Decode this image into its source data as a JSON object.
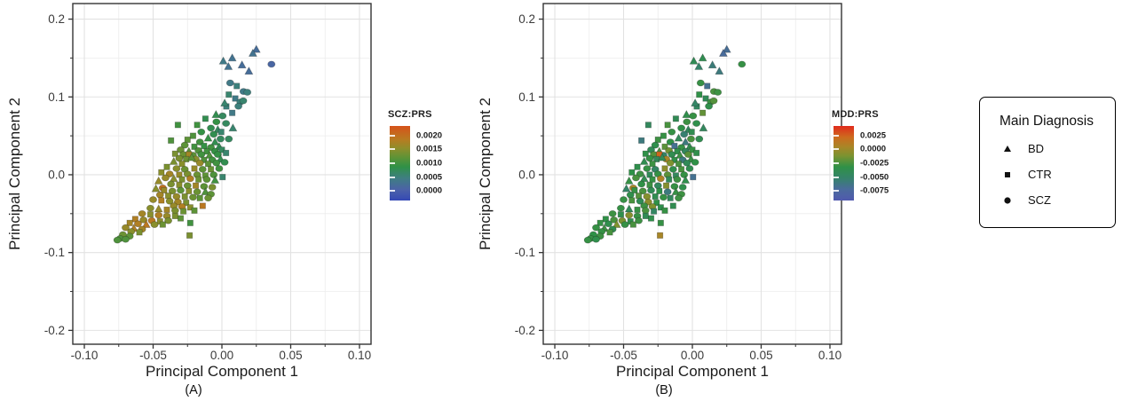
{
  "figure_caption_a": "(A)",
  "figure_caption_b": "(B)",
  "chart_data": [
    {
      "type": "scatter",
      "panel": "A",
      "caption": "(A)",
      "xlabel": "Principal Component 1",
      "ylabel": "Principal Component 2",
      "xlim": [
        -0.1084,
        0.1084
      ],
      "ylim": [
        -0.2178,
        0.22
      ],
      "x_ticks": {
        "values": [
          -0.1,
          -0.05,
          0.0,
          0.05,
          0.1
        ],
        "labels": [
          "-0.10",
          "-0.05",
          "0.00",
          "0.05",
          "0.10"
        ]
      },
      "y_ticks": {
        "values": [
          0.2,
          0.1,
          0.0,
          -0.1,
          -0.2
        ],
        "labels": [
          "0.2",
          "0.1",
          "0.0",
          "-0.1",
          "-0.2"
        ]
      },
      "x_minor": [
        -0.075,
        -0.025,
        0.025,
        0.075
      ],
      "y_minor": [
        0.15,
        0.05,
        -0.05,
        -0.15
      ],
      "grid": true,
      "color_field": "scz_prs",
      "colorbar": {
        "title": "SCZ:PRS",
        "domain": [
          -0.00035,
          0.00235
        ],
        "tick_labels": [
          "0.0020",
          "0.0015",
          "0.0010",
          "0.0005",
          "0.0000"
        ],
        "tick_pos_pct": [
          13,
          31.5,
          50,
          68.5,
          87
        ],
        "stops": [
          [
            0,
            "#3448b4"
          ],
          [
            0.14,
            "#4b61a9"
          ],
          [
            0.3,
            "#3f7e82"
          ],
          [
            0.45,
            "#2f9147"
          ],
          [
            0.58,
            "#5f9336"
          ],
          [
            0.7,
            "#8f8e2b"
          ],
          [
            0.82,
            "#b87b21"
          ],
          [
            1,
            "#d6521a"
          ]
        ]
      }
    },
    {
      "type": "scatter",
      "panel": "B",
      "caption": "(B)",
      "xlabel": "Principal Component 1",
      "ylabel": "Principal Component 2",
      "xlim": [
        -0.1084,
        0.1084
      ],
      "ylim": [
        -0.2178,
        0.22
      ],
      "x_ticks": {
        "values": [
          -0.1,
          -0.05,
          0.0,
          0.05,
          0.1
        ],
        "labels": [
          "-0.10",
          "-0.05",
          "0.00",
          "0.05",
          "0.10"
        ]
      },
      "y_ticks": {
        "values": [
          0.2,
          0.1,
          0.0,
          -0.1,
          -0.2
        ],
        "labels": [
          "0.2",
          "0.1",
          "0.0",
          "-0.1",
          "-0.2"
        ]
      },
      "x_minor": [
        -0.075,
        -0.025,
        0.025,
        0.075
      ],
      "y_minor": [
        0.15,
        0.05,
        -0.05,
        -0.15
      ],
      "grid": true,
      "color_field": "mdd_prs",
      "colorbar": {
        "title": "MDD:PRS",
        "domain": [
          -0.00935,
          0.00435
        ],
        "tick_labels": [
          "0.0025",
          "0.0000",
          "-0.0025",
          "-0.0050",
          "-0.0075"
        ],
        "tick_pos_pct": [
          13,
          31.5,
          50,
          68.5,
          87
        ],
        "stops": [
          [
            0,
            "#5059ae"
          ],
          [
            0.15,
            "#4a6b9d"
          ],
          [
            0.3,
            "#35836a"
          ],
          [
            0.45,
            "#2f9147"
          ],
          [
            0.6,
            "#7c9330"
          ],
          [
            0.72,
            "#a88627"
          ],
          [
            0.85,
            "#cd6b1e"
          ],
          [
            1,
            "#e12a1c"
          ]
        ]
      }
    }
  ],
  "points_columns": [
    "pc1",
    "pc2",
    "shape(t=BD,s=CTR,c=SCZ)",
    "scz_prs",
    "mdd_prs"
  ],
  "points": [
    [
      0.025,
      0.161,
      "t",
      0.0002,
      -0.007
    ],
    [
      0.0225,
      0.156,
      "t",
      0.0003,
      -0.0072
    ],
    [
      0.0075,
      0.15,
      "t",
      0.0003,
      -0.0038
    ],
    [
      0.001,
      0.146,
      "t",
      0.0004,
      -0.004
    ],
    [
      0.0047,
      0.139,
      "t",
      0.0003,
      -0.0052
    ],
    [
      0.0146,
      0.141,
      "t",
      0.0002,
      -0.0058
    ],
    [
      0.0196,
      0.133,
      "t",
      0.0002,
      -0.006
    ],
    [
      0.036,
      0.142,
      "c",
      0.0001,
      -0.003
    ],
    [
      0.006,
      0.118,
      "c",
      0.0004,
      -0.003
    ],
    [
      0.0108,
      0.114,
      "s",
      0.0005,
      -0.0068
    ],
    [
      0.0157,
      0.107,
      "c",
      0.0004,
      -0.0025
    ],
    [
      0.005,
      0.103,
      "s",
      0.0006,
      -0.0032
    ],
    [
      0.0185,
      0.106,
      "c",
      0.0005,
      -0.0028
    ],
    [
      0.0097,
      0.098,
      "s",
      0.0004,
      -0.0042
    ],
    [
      0.0134,
      0.0935,
      "c",
      0.0005,
      -0.0028
    ],
    [
      0.0032,
      0.0878,
      "s",
      0.0005,
      -0.0047
    ],
    [
      0.0155,
      0.095,
      "c",
      0.0006,
      -0.0022
    ],
    [
      0.0075,
      0.0795,
      "s",
      0.0004,
      -0.0018
    ],
    [
      -0.0043,
      0.0772,
      "t",
      0.0008,
      -0.0035
    ],
    [
      0.0005,
      0.0756,
      "c",
      0.0007,
      -0.003
    ],
    [
      0.012,
      0.088,
      "c",
      0.0005,
      -0.0035
    ],
    [
      0.002,
      0.092,
      "t",
      0.0006,
      -0.005
    ],
    [
      -0.012,
      0.072,
      "s",
      0.0008,
      -0.004
    ],
    [
      -0.004,
      0.068,
      "c",
      0.0009,
      -0.0028
    ],
    [
      -0.018,
      0.064,
      "s",
      0.001,
      -0.0025
    ],
    [
      -0.032,
      0.064,
      "s",
      0.001,
      -0.0045
    ],
    [
      -0.008,
      0.06,
      "c",
      0.0008,
      -0.0032
    ],
    [
      -0.003,
      0.058,
      "t",
      0.0007,
      -0.0045
    ],
    [
      -0.015,
      0.055,
      "c",
      0.0009,
      -0.003
    ],
    [
      -0.006,
      0.052,
      "c",
      0.0008,
      -0.0055
    ],
    [
      -0.0005,
      0.055,
      "s",
      0.0006,
      -0.0038
    ],
    [
      -0.021,
      0.05,
      "s",
      0.0011,
      -0.003
    ],
    [
      -0.01,
      0.047,
      "t",
      0.0009,
      -0.0042
    ],
    [
      -0.025,
      0.045,
      "s",
      0.0012,
      -0.0028
    ],
    [
      -0.037,
      0.044,
      "s",
      0.0011,
      -0.006
    ],
    [
      -0.016,
      0.042,
      "c",
      0.001,
      -0.0032
    ],
    [
      -0.005,
      0.042,
      "t",
      0.0008,
      -0.006
    ],
    [
      -0.001,
      0.046,
      "c",
      0.0007,
      -0.0025
    ],
    [
      0.003,
      0.066,
      "c",
      0.0007,
      -0.0035
    ],
    [
      0.008,
      0.06,
      "t",
      0.0006,
      -0.0045
    ],
    [
      0.005,
      0.046,
      "c",
      0.0007,
      -0.0038
    ],
    [
      -0.027,
      0.038,
      "c",
      0.0012,
      -0.0035
    ],
    [
      -0.02,
      0.036,
      "s",
      0.001,
      -0.002
    ],
    [
      -0.013,
      0.037,
      "s",
      0.0009,
      -0.0068
    ],
    [
      -0.008,
      0.035,
      "c",
      0.001,
      -0.003
    ],
    [
      -0.002,
      0.036,
      "t",
      0.0008,
      -0.0038
    ],
    [
      -0.03,
      0.032,
      "c",
      0.0013,
      -0.004
    ],
    [
      -0.024,
      0.03,
      "t",
      0.0012,
      -0.0025
    ],
    [
      -0.017,
      0.031,
      "c",
      0.0011,
      -0.0015
    ],
    [
      -0.011,
      0.03,
      "s",
      0.001,
      -0.0035
    ],
    [
      -0.005,
      0.03,
      "c",
      0.0009,
      -0.0045
    ],
    [
      0.0,
      0.032,
      "s",
      0.0007,
      -0.003
    ],
    [
      -0.034,
      0.027,
      "s",
      0.0014,
      -0.0032
    ],
    [
      -0.028,
      0.026,
      "c",
      0.0013,
      -0.0022
    ],
    [
      -0.021,
      0.025,
      "c",
      0.0012,
      -0.005
    ],
    [
      -0.024,
      0.026,
      "s",
      0.0017,
      0.0025
    ],
    [
      -0.015,
      0.026,
      "c",
      0.001,
      -0.0038
    ],
    [
      -0.009,
      0.025,
      "t",
      0.0011,
      -0.0028
    ],
    [
      -0.003,
      0.026,
      "c",
      0.0009,
      -0.002
    ],
    [
      0.003,
      0.028,
      "s",
      0.0006,
      -0.0035
    ],
    [
      -0.031,
      0.021,
      "c",
      0.0014,
      -0.003
    ],
    [
      -0.026,
      0.02,
      "s",
      0.0013,
      -0.0042
    ],
    [
      -0.019,
      0.02,
      "c",
      0.0015,
      0.0005
    ],
    [
      -0.013,
      0.019,
      "s",
      0.0011,
      -0.0032
    ],
    [
      -0.007,
      0.019,
      "c",
      0.001,
      -0.006
    ],
    [
      -0.001,
      0.02,
      "t",
      0.0008,
      -0.003
    ],
    [
      -0.022,
      0.022,
      "t",
      0.0012,
      -0.004
    ],
    [
      -0.016,
      0.015,
      "c",
      0.0016,
      -0.001
    ],
    [
      -0.01,
      0.014,
      "s",
      0.0012,
      -0.0025
    ],
    [
      -0.004,
      0.015,
      "c",
      0.001,
      -0.0042
    ],
    [
      0.002,
      0.016,
      "c",
      0.0008,
      -0.0032
    ],
    [
      -0.029,
      0.014,
      "s",
      0.0015,
      -0.0028
    ],
    [
      -0.035,
      0.017,
      "t",
      0.0014,
      -0.0038
    ],
    [
      -0.04,
      0.01,
      "s",
      0.0014,
      -0.0035
    ],
    [
      -0.033,
      0.008,
      "c",
      0.0015,
      -0.003
    ],
    [
      -0.027,
      0.007,
      "c",
      0.0013,
      -0.0048
    ],
    [
      -0.02,
      0.008,
      "s",
      0.0016,
      -0.0005
    ],
    [
      -0.014,
      0.007,
      "c",
      0.0012,
      -0.0035
    ],
    [
      -0.008,
      0.007,
      "s",
      0.0013,
      -0.0025
    ],
    [
      -0.002,
      0.008,
      "c",
      0.001,
      -0.0038
    ],
    [
      -0.044,
      0.003,
      "s",
      0.0015,
      -0.0032
    ],
    [
      -0.038,
      0.001,
      "c",
      0.0017,
      -0.0028
    ],
    [
      -0.031,
      0.0,
      "s",
      0.0016,
      -0.0042
    ],
    [
      -0.025,
      0.001,
      "c",
      0.0014,
      -0.003
    ],
    [
      -0.018,
      0.0,
      "c",
      0.0013,
      -0.002
    ],
    [
      -0.012,
      -0.001,
      "s",
      0.0012,
      -0.0045
    ],
    [
      -0.006,
      0.0,
      "c",
      0.0011,
      -0.003
    ],
    [
      0.0005,
      -0.003,
      "s",
      0.0006,
      -0.0068
    ],
    [
      -0.041,
      -0.004,
      "c",
      0.0016,
      -0.0025
    ],
    [
      -0.035,
      -0.005,
      "t",
      0.0015,
      -0.0038
    ],
    [
      -0.029,
      -0.006,
      "s",
      0.0014,
      -0.003
    ],
    [
      -0.023,
      -0.005,
      "c",
      0.0018,
      0.0008
    ],
    [
      -0.017,
      -0.006,
      "s",
      0.0013,
      -0.0042
    ],
    [
      -0.011,
      -0.006,
      "c",
      0.0012,
      -0.0028
    ],
    [
      -0.005,
      -0.007,
      "t",
      0.001,
      -0.0035
    ],
    [
      -0.046,
      -0.008,
      "t",
      0.0016,
      -0.003
    ],
    [
      -0.043,
      -0.017,
      "c",
      0.002,
      0.0005
    ],
    [
      -0.037,
      -0.012,
      "c",
      0.0014,
      -0.0032
    ],
    [
      -0.031,
      -0.013,
      "s",
      0.0015,
      -0.0028
    ],
    [
      -0.025,
      -0.014,
      "c",
      0.0013,
      -0.0045
    ],
    [
      -0.019,
      -0.014,
      "s",
      0.0017,
      -0.0008
    ],
    [
      -0.013,
      -0.015,
      "c",
      0.0012,
      -0.003
    ],
    [
      -0.007,
      -0.016,
      "c",
      0.0014,
      -0.0035
    ],
    [
      -0.048,
      -0.018,
      "t",
      0.0015,
      -0.005
    ],
    [
      -0.042,
      -0.02,
      "s",
      0.0016,
      -0.003
    ],
    [
      -0.036,
      -0.021,
      "c",
      0.0014,
      -0.0025
    ],
    [
      -0.03,
      -0.02,
      "c",
      0.0012,
      -0.004
    ],
    [
      -0.024,
      -0.021,
      "s",
      0.0015,
      -0.0032
    ],
    [
      -0.018,
      -0.022,
      "c",
      0.0013,
      -0.006
    ],
    [
      -0.012,
      -0.022,
      "t",
      0.0011,
      -0.003
    ],
    [
      -0.008,
      -0.025,
      "c",
      0.0012,
      -0.0028
    ],
    [
      -0.01,
      -0.03,
      "c",
      0.0013,
      -0.0028
    ],
    [
      -0.045,
      -0.026,
      "c",
      0.0017,
      -0.0035
    ],
    [
      -0.039,
      -0.027,
      "s",
      0.0015,
      -0.0022
    ],
    [
      -0.033,
      -0.028,
      "c",
      0.0016,
      -0.0008
    ],
    [
      -0.027,
      -0.028,
      "s",
      0.0014,
      -0.0038
    ],
    [
      -0.021,
      -0.029,
      "c",
      0.0013,
      -0.003
    ],
    [
      -0.016,
      -0.03,
      "s",
      0.0012,
      -0.0045
    ],
    [
      -0.05,
      -0.032,
      "c",
      0.0016,
      -0.003
    ],
    [
      -0.044,
      -0.033,
      "s",
      0.0018,
      -0.0025
    ],
    [
      -0.038,
      -0.034,
      "c",
      0.0015,
      -0.004
    ],
    [
      -0.032,
      -0.035,
      "c",
      0.0017,
      -0.0005
    ],
    [
      -0.026,
      -0.036,
      "s",
      0.0014,
      -0.0032
    ],
    [
      -0.035,
      -0.04,
      "c",
      0.0016,
      -0.0028
    ],
    [
      -0.029,
      -0.041,
      "c",
      0.0018,
      -0.001
    ],
    [
      -0.023,
      -0.042,
      "s",
      0.0015,
      -0.0035
    ],
    [
      -0.014,
      -0.04,
      "s",
      0.0019,
      -0.0038
    ],
    [
      -0.052,
      -0.043,
      "c",
      0.0015,
      -0.003
    ],
    [
      -0.046,
      -0.044,
      "t",
      0.0016,
      -0.0042
    ],
    [
      -0.04,
      -0.045,
      "s",
      0.0017,
      -0.003
    ],
    [
      -0.034,
      -0.046,
      "c",
      0.0014,
      -0.0025
    ],
    [
      -0.028,
      -0.047,
      "s",
      0.0013,
      -0.0048
    ],
    [
      -0.02,
      -0.046,
      "s",
      0.0012,
      -0.003
    ],
    [
      -0.03,
      -0.056,
      "s",
      0.0012,
      -0.0035
    ],
    [
      -0.023,
      -0.062,
      "s",
      0.001,
      -0.003
    ],
    [
      -0.0235,
      -0.078,
      "s",
      0.0014,
      0.0005
    ],
    [
      -0.058,
      -0.05,
      "c",
      0.0017,
      -0.0028
    ],
    [
      -0.052,
      -0.051,
      "s",
      0.0015,
      -0.0035
    ],
    [
      -0.046,
      -0.052,
      "c",
      0.0018,
      -0.0008
    ],
    [
      -0.04,
      -0.053,
      "c",
      0.0016,
      -0.003
    ],
    [
      -0.034,
      -0.053,
      "s",
      0.0014,
      -0.004
    ],
    [
      -0.063,
      -0.057,
      "s",
      0.0018,
      -0.0032
    ],
    [
      -0.057,
      -0.058,
      "c",
      0.0016,
      -0.0025
    ],
    [
      -0.051,
      -0.059,
      "c",
      0.0019,
      -0.0012
    ],
    [
      -0.045,
      -0.06,
      "s",
      0.0015,
      -0.0035
    ],
    [
      -0.039,
      -0.059,
      "c",
      0.0014,
      -0.0028
    ],
    [
      -0.067,
      -0.062,
      "s",
      0.0017,
      -0.003
    ],
    [
      -0.061,
      -0.063,
      "c",
      0.0018,
      -0.0035
    ],
    [
      -0.055,
      -0.064,
      "t",
      0.0019,
      -0.001
    ],
    [
      -0.049,
      -0.064,
      "c",
      0.0015,
      -0.003
    ],
    [
      -0.043,
      -0.064,
      "s",
      0.0013,
      -0.0025
    ],
    [
      -0.07,
      -0.068,
      "c",
      0.0016,
      -0.003
    ],
    [
      -0.064,
      -0.069,
      "t",
      0.0018,
      -0.0028
    ],
    [
      -0.058,
      -0.07,
      "c",
      0.0017,
      -0.0038
    ],
    [
      -0.066,
      -0.073,
      "c",
      0.0015,
      -0.003
    ],
    [
      -0.06,
      -0.074,
      "s",
      0.0014,
      -0.0025
    ],
    [
      -0.072,
      -0.077,
      "c",
      0.0013,
      -0.0032
    ],
    [
      -0.067,
      -0.079,
      "c",
      0.0012,
      -0.0028
    ],
    [
      -0.074,
      -0.082,
      "c",
      0.0011,
      -0.003
    ],
    [
      -0.07,
      -0.083,
      "c",
      0.0011,
      -0.0035
    ],
    [
      -0.076,
      -0.084,
      "c",
      0.0011,
      -0.003
    ]
  ],
  "shape_legend": {
    "title": "Main Diagnosis",
    "items": [
      {
        "shape": "triangle",
        "label": "BD"
      },
      {
        "shape": "square",
        "label": "CTR"
      },
      {
        "shape": "circle",
        "label": "SCZ"
      }
    ]
  },
  "colors": {
    "panel_border": "#333333",
    "grid_major": "#e2e2e2",
    "grid_minor": "#ececec",
    "tick_text": "#3b3b3b",
    "axis_title_text": "#1c1c1c",
    "point_stroke": "rgba(30,30,30,0.35)"
  }
}
